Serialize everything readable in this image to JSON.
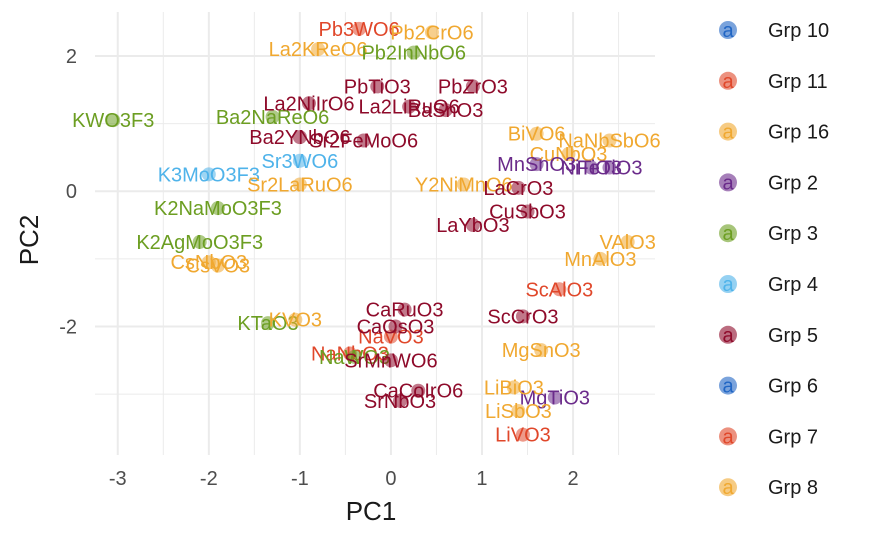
{
  "chart_data": {
    "type": "scatter",
    "xlabel": "PC1",
    "ylabel": "PC2",
    "xlim": [
      -3.25,
      2.9
    ],
    "ylim": [
      -3.9,
      2.65
    ],
    "x_ticks": [
      -3,
      -2,
      -1,
      0,
      1,
      2
    ],
    "y_ticks": [
      -2,
      0,
      2
    ],
    "grid": true,
    "legend_position": "right",
    "groups": [
      {
        "name": "Grp 10",
        "color": "#2166c4"
      },
      {
        "name": "Grp 11",
        "color": "#e0472a"
      },
      {
        "name": "Grp 16",
        "color": "#f0a830"
      },
      {
        "name": "Grp 2",
        "color": "#6a2a8a"
      },
      {
        "name": "Grp 3",
        "color": "#6c9e22"
      },
      {
        "name": "Grp 4",
        "color": "#4fb3ea"
      },
      {
        "name": "Grp 5",
        "color": "#8e0a2a"
      },
      {
        "name": "Grp 6",
        "color": "#2166c4"
      },
      {
        "name": "Grp 7",
        "color": "#e0472a"
      },
      {
        "name": "Grp 8",
        "color": "#f0a830"
      }
    ],
    "points": [
      {
        "label": "KWO3F3",
        "x": -3.05,
        "y": 1.05,
        "group": "Grp 3"
      },
      {
        "label": "Ba2NaReO6",
        "x": -1.3,
        "y": 1.1,
        "group": "Grp 3"
      },
      {
        "label": "K3MoO3F3",
        "x": -2.0,
        "y": 0.25,
        "group": "Grp 4"
      },
      {
        "label": "Sr3WO6",
        "x": -1.0,
        "y": 0.45,
        "group": "Grp 4"
      },
      {
        "label": "K2NaMoO3F3",
        "x": -1.9,
        "y": -0.25,
        "group": "Grp 3"
      },
      {
        "label": "K2AgMoO3F3",
        "x": -2.1,
        "y": -0.75,
        "group": "Grp 3"
      },
      {
        "label": "Sr2LaRuO6",
        "x": -1.0,
        "y": 0.1,
        "group": "Grp 8"
      },
      {
        "label": "CsNbO3",
        "x": -2.0,
        "y": -1.05,
        "group": "Grp 16"
      },
      {
        "label": "CsVO3",
        "x": -1.9,
        "y": -1.1,
        "group": "Grp 16"
      },
      {
        "label": "KTaO3",
        "x": -1.35,
        "y": -1.95,
        "group": "Grp 3"
      },
      {
        "label": "KVO3",
        "x": -1.05,
        "y": -1.9,
        "group": "Grp 16"
      },
      {
        "label": "NaNbO3",
        "x": -0.45,
        "y": -2.4,
        "group": "Grp 7"
      },
      {
        "label": "NaWO3",
        "x": -0.4,
        "y": -2.45,
        "group": "Grp 3"
      },
      {
        "label": "NaVO3",
        "x": 0.0,
        "y": -2.15,
        "group": "Grp 7"
      },
      {
        "label": "CaOsO3",
        "x": 0.05,
        "y": -2.0,
        "group": "Grp 5"
      },
      {
        "label": "CaRuO3",
        "x": 0.15,
        "y": -1.75,
        "group": "Grp 5"
      },
      {
        "label": "Pb3WO6",
        "x": -0.35,
        "y": 2.4,
        "group": "Grp 11"
      },
      {
        "label": "Pb2CrO6",
        "x": 0.45,
        "y": 2.35,
        "group": "Grp 16"
      },
      {
        "label": "La2KReO6",
        "x": -0.8,
        "y": 2.1,
        "group": "Grp 16"
      },
      {
        "label": "Pb2InNbO6",
        "x": 0.25,
        "y": 2.05,
        "group": "Grp 3"
      },
      {
        "label": "PbTiO3",
        "x": -0.15,
        "y": 1.55,
        "group": "Grp 5"
      },
      {
        "label": "PbZrO3",
        "x": 0.9,
        "y": 1.55,
        "group": "Grp 5"
      },
      {
        "label": "La2NiIrO6",
        "x": -0.9,
        "y": 1.3,
        "group": "Grp 5"
      },
      {
        "label": "La2LiRuO6",
        "x": 0.2,
        "y": 1.25,
        "group": "Grp 5"
      },
      {
        "label": "BaSnO3",
        "x": 0.6,
        "y": 1.2,
        "group": "Grp 5"
      },
      {
        "label": "Ba2YNbO6",
        "x": -1.0,
        "y": 0.8,
        "group": "Grp 5"
      },
      {
        "label": "Sr2FeMoO6",
        "x": -0.3,
        "y": 0.75,
        "group": "Grp 5"
      },
      {
        "label": "BiVO6",
        "x": 1.6,
        "y": 0.85,
        "group": "Grp 16"
      },
      {
        "label": "NaNbSbO6",
        "x": 2.4,
        "y": 0.75,
        "group": "Grp 16"
      },
      {
        "label": "CuNbO3",
        "x": 1.95,
        "y": 0.55,
        "group": "Grp 16"
      },
      {
        "label": "MnSnO3",
        "x": 1.6,
        "y": 0.4,
        "group": "Grp 2"
      },
      {
        "label": "FeTiO3",
        "x": 2.4,
        "y": 0.35,
        "group": "Grp 2"
      },
      {
        "label": "NiTiO3",
        "x": 2.2,
        "y": 0.35,
        "group": "Grp 2"
      },
      {
        "label": "Y2NiMnO6",
        "x": 0.8,
        "y": 0.1,
        "group": "Grp 16"
      },
      {
        "label": "LaCrO3",
        "x": 1.4,
        "y": 0.05,
        "group": "Grp 5"
      },
      {
        "label": "CuSbO3",
        "x": 1.5,
        "y": -0.3,
        "group": "Grp 5"
      },
      {
        "label": "LaYbO3",
        "x": 0.9,
        "y": -0.5,
        "group": "Grp 5"
      },
      {
        "label": "VAlO3",
        "x": 2.6,
        "y": -0.75,
        "group": "Grp 16"
      },
      {
        "label": "MnAlO3",
        "x": 2.3,
        "y": -1.0,
        "group": "Grp 16"
      },
      {
        "label": "ScAlO3",
        "x": 1.85,
        "y": -1.45,
        "group": "Grp 11"
      },
      {
        "label": "ScCrO3",
        "x": 1.45,
        "y": -1.85,
        "group": "Grp 5"
      },
      {
        "label": "MgSnO3",
        "x": 1.65,
        "y": -2.35,
        "group": "Grp 16"
      },
      {
        "label": "MgTiO3",
        "x": 1.8,
        "y": -3.05,
        "group": "Grp 2"
      },
      {
        "label": "SrMnWO6",
        "x": 0.0,
        "y": -2.5,
        "group": "Grp 5"
      },
      {
        "label": "CaCoIrO6",
        "x": 0.3,
        "y": -2.95,
        "group": "Grp 5"
      },
      {
        "label": "SrNbO3",
        "x": 0.1,
        "y": -3.1,
        "group": "Grp 5"
      },
      {
        "label": "LiBiO3",
        "x": 1.35,
        "y": -2.9,
        "group": "Grp 16"
      },
      {
        "label": "LiSbO3",
        "x": 1.4,
        "y": -3.25,
        "group": "Grp 16"
      },
      {
        "label": "LiVO3",
        "x": 1.45,
        "y": -3.6,
        "group": "Grp 7"
      }
    ]
  }
}
